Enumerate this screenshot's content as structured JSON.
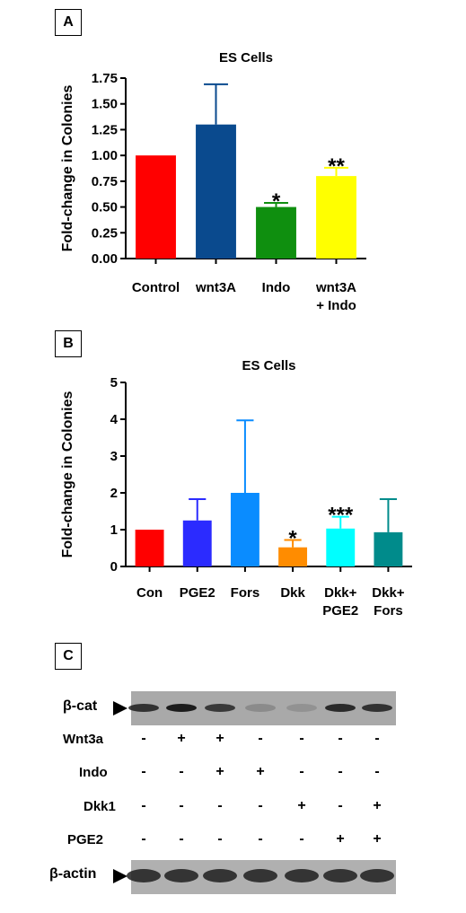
{
  "panels": [
    "A",
    "B",
    "C"
  ],
  "chart_data": [
    {
      "type": "bar",
      "title": "ES Cells",
      "xlabel": "",
      "ylabel": "Fold-change in Colonies",
      "ylim": [
        0,
        1.75
      ],
      "yticks": [
        "0.00",
        "0.25",
        "0.50",
        "0.75",
        "1.00",
        "1.25",
        "1.50",
        "1.75"
      ],
      "categories": [
        [
          "Control"
        ],
        [
          "wnt3A"
        ],
        [
          "Indo"
        ],
        [
          "wnt3A",
          "+ Indo"
        ]
      ],
      "values": [
        1.0,
        1.3,
        0.5,
        0.8
      ],
      "errors": [
        0,
        0.39,
        0.04,
        0.08
      ],
      "colors": [
        "#ff0000",
        "#0a4a8e",
        "#0f8f0f",
        "#ffff00"
      ],
      "significance": [
        "",
        "",
        "*",
        "**"
      ]
    },
    {
      "type": "bar",
      "title": "ES Cells",
      "xlabel": "",
      "ylabel": "Fold-change in Colonies",
      "ylim": [
        0,
        5
      ],
      "yticks": [
        "0",
        "1",
        "2",
        "3",
        "4",
        "5"
      ],
      "categories": [
        [
          "Con"
        ],
        [
          "PGE2"
        ],
        [
          "Fors"
        ],
        [
          "Dkk"
        ],
        [
          "Dkk+",
          "PGE2"
        ],
        [
          "Dkk+",
          "Fors"
        ]
      ],
      "values": [
        1.0,
        1.25,
        2.0,
        0.52,
        1.03,
        0.93
      ],
      "errors": [
        0,
        0.58,
        1.97,
        0.2,
        0.32,
        0.9
      ],
      "colors": [
        "#ff0000",
        "#2b2bff",
        "#0a8cff",
        "#ff8c00",
        "#00ffff",
        "#008b8b"
      ],
      "significance": [
        "",
        "",
        "",
        "*",
        "***",
        ""
      ]
    }
  ],
  "blot": {
    "top_label": "β-cat",
    "bottom_label": "β-actin",
    "top_band_intensity": [
      0.8,
      0.95,
      0.75,
      0.2,
      0.15,
      0.85,
      0.8
    ],
    "conditions": [
      {
        "label": "Wnt3a",
        "marks": [
          "-",
          "+",
          "+",
          "-",
          "-",
          "-",
          "-"
        ]
      },
      {
        "label": "Indo",
        "marks": [
          "-",
          "-",
          "+",
          "+",
          "-",
          "-",
          "-"
        ]
      },
      {
        "label": "Dkk1",
        "marks": [
          "-",
          "-",
          "-",
          "-",
          "+",
          "-",
          "+"
        ]
      },
      {
        "label": "PGE2",
        "marks": [
          "-",
          "-",
          "-",
          "-",
          "-",
          "+",
          "+"
        ]
      }
    ]
  }
}
